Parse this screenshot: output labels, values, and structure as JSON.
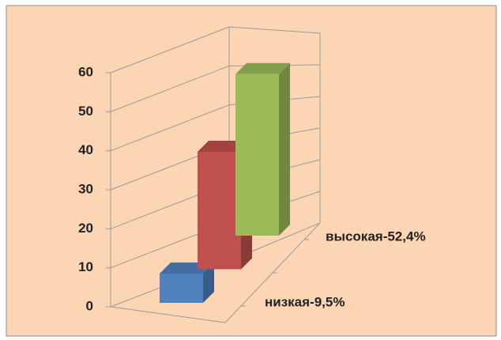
{
  "chart_data": {
    "type": "bar3d",
    "categories": [
      "низкая-9,5%",
      null,
      "высокая-52,4%"
    ],
    "values": [
      9.5,
      38.1,
      52.4
    ],
    "colors": [
      "#4f81bd",
      "#c0504d",
      "#9bbb59"
    ],
    "ylim": [
      0,
      60
    ],
    "yticks": [
      0,
      10,
      20,
      30,
      40,
      50,
      60
    ],
    "grid": true
  }
}
